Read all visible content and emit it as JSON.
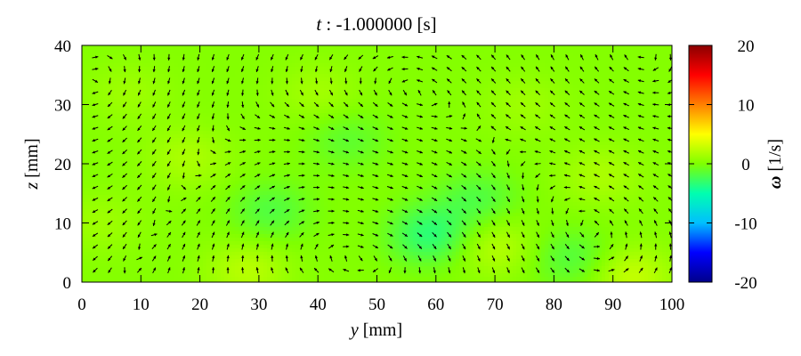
{
  "chart_data": {
    "type": "heatmap",
    "title_var": "t",
    "title_rest": " : -1.000000 [s]",
    "x_var": "y",
    "x_unit": " [mm]",
    "y_var": "z",
    "y_unit": " [mm]",
    "colorbar_var": "ω",
    "colorbar_unit": " [1/s]",
    "xlim": [
      0,
      100
    ],
    "ylim": [
      0,
      40
    ],
    "x_ticks": [
      0,
      10,
      20,
      30,
      40,
      50,
      60,
      70,
      80,
      90,
      100
    ],
    "y_ticks": [
      0,
      10,
      20,
      30,
      40
    ],
    "colorbar_range": [
      -20,
      20
    ],
    "colorbar_ticks": [
      20,
      10,
      0,
      -10,
      -20
    ],
    "colormap": [
      "#00008b",
      "#0000ff",
      "#00bfff",
      "#00ffb0",
      "#7fff00",
      "#ffff00",
      "#ff8000",
      "#ff0000",
      "#8b0000"
    ],
    "vorticity_blobs": [
      {
        "y": 18,
        "z": 21,
        "omega": 1.5
      },
      {
        "y": 32,
        "z": 12,
        "omega": -2.0
      },
      {
        "y": 28,
        "z": 2,
        "omega": 2.0
      },
      {
        "y": 40,
        "z": 32,
        "omega": 1.2
      },
      {
        "y": 45,
        "z": 24,
        "omega": -1.5
      },
      {
        "y": 59,
        "z": 8,
        "omega": -3.5
      },
      {
        "y": 67,
        "z": 14,
        "omega": -2.0
      },
      {
        "y": 70,
        "z": 6,
        "omega": 2.0
      },
      {
        "y": 83,
        "z": 4,
        "omega": -2.0
      },
      {
        "y": 88,
        "z": 18,
        "omega": 1.5
      },
      {
        "y": 93,
        "z": 1,
        "omega": 2.5
      },
      {
        "y": 75,
        "z": 30,
        "omega": 1.0
      },
      {
        "y": 8,
        "z": 32,
        "omega": 1.0
      },
      {
        "y": 3,
        "z": 10,
        "omega": 1.0
      }
    ],
    "vector_field": {
      "y_start": 2.25,
      "y_step": 2.5,
      "y_count": 40,
      "z_start": 2,
      "z_step": 2,
      "z_count": 19,
      "vortices": [
        {
          "y": 20,
          "z": 22,
          "strength": 1
        },
        {
          "y": 36,
          "z": 12,
          "strength": -1
        },
        {
          "y": 52,
          "z": 28,
          "strength": 1
        },
        {
          "y": 62,
          "z": 8,
          "strength": -1
        },
        {
          "y": 76,
          "z": 20,
          "strength": 1
        },
        {
          "y": 90,
          "z": 32,
          "strength": -1
        },
        {
          "y": 8,
          "z": 30,
          "strength": -1
        },
        {
          "y": 88,
          "z": 8,
          "strength": 1
        }
      ]
    }
  }
}
